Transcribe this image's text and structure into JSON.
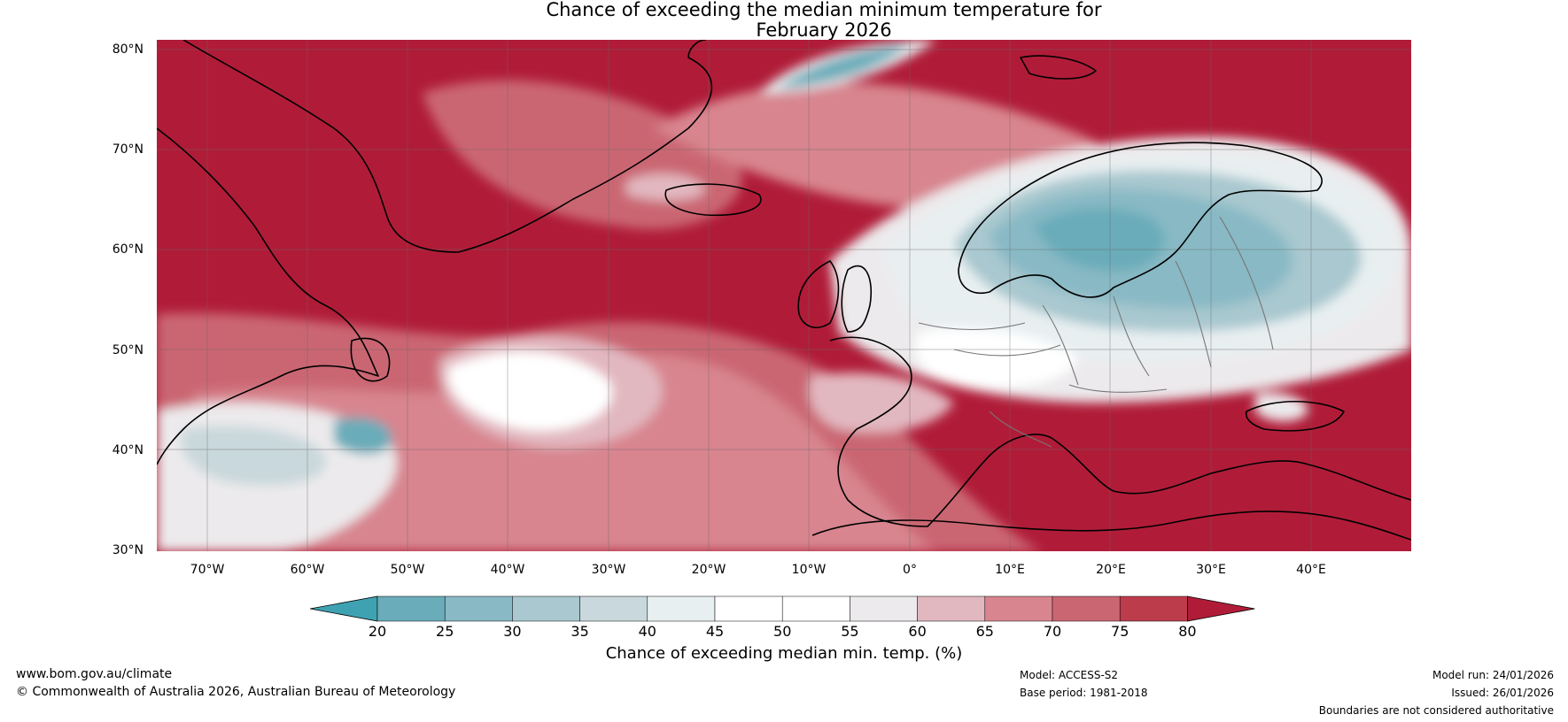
{
  "title": {
    "line1": "Chance of exceeding the median minimum temperature for",
    "line2": "February 2026"
  },
  "axes": {
    "lat_labels": [
      "80°N",
      "70°N",
      "60°N",
      "50°N",
      "40°N",
      "30°N"
    ],
    "lon_labels": [
      "70°W",
      "60°W",
      "50°W",
      "40°W",
      "30°W",
      "20°W",
      "10°W",
      "0°",
      "10°E",
      "20°E",
      "30°E",
      "40°E"
    ],
    "lat_range": [
      30,
      80
    ],
    "lon_range": [
      -75,
      50
    ],
    "graticule": true
  },
  "colorbar": {
    "ticks": [
      "20",
      "25",
      "30",
      "35",
      "40",
      "45",
      "50",
      "55",
      "60",
      "65",
      "70",
      "75",
      "80"
    ],
    "colors": [
      "#6aacb9",
      "#88b9c5",
      "#a9c8cf",
      "#c9d8dc",
      "#e8eff1",
      "#ffffff",
      "#ffffff",
      "#eceaec",
      "#e2b8c0",
      "#d8858f",
      "#ca6672",
      "#bd3c4c"
    ],
    "under_color": "#3fa2b2",
    "over_color": "#b01c38",
    "label": "Chance of exceeding median min. temp. (%)"
  },
  "footer": {
    "website": "www.bom.gov.au/climate",
    "copyright": "© Commonwealth of Australia 2026, Australian Bureau of Meteorology",
    "model": "Model: ACCESS-S2",
    "base_period": "Base period: 1981-2018",
    "model_run": "Model run: 24/01/2026",
    "issued": "Issued: 26/01/2026",
    "disclaimer": "Boundaries are not considered authoritative"
  }
}
